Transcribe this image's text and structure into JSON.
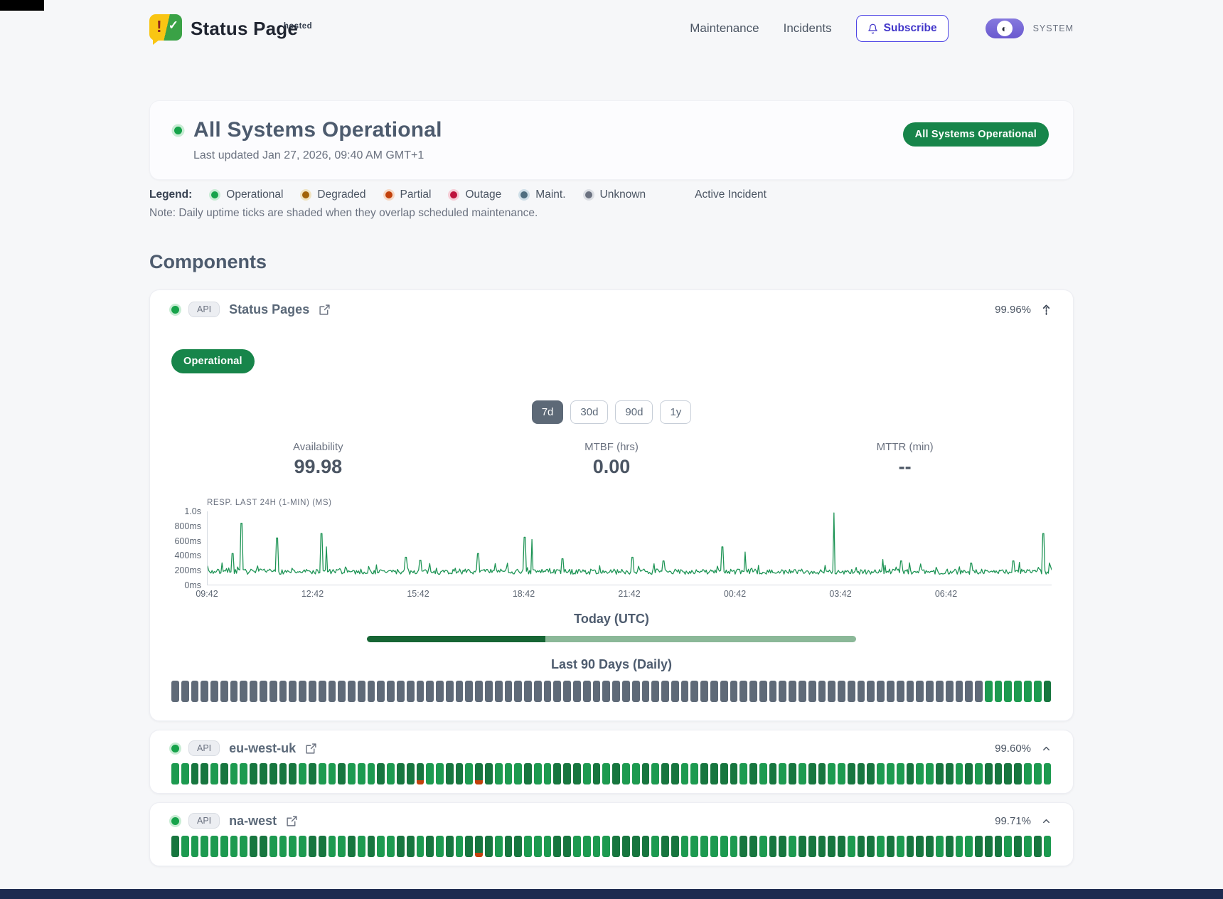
{
  "header": {
    "brand": {
      "name": "Status Page",
      "superscript": "hosted"
    },
    "nav": [
      "Maintenance",
      "Incidents"
    ],
    "subscribe_label": "Subscribe",
    "theme_label": "SYSTEM"
  },
  "hero": {
    "title": "All Systems Operational",
    "last_updated": "Last updated Jan 27, 2026, 09:40 AM GMT+1",
    "badge": "All Systems Operational"
  },
  "legend": {
    "label": "Legend:",
    "items": [
      {
        "label": "Operational",
        "color": "#16a34a",
        "halo": "#c8ecd4"
      },
      {
        "label": "Degraded",
        "color": "#a16207",
        "halo": "#f0e3c0"
      },
      {
        "label": "Partial",
        "color": "#c2410c",
        "halo": "#f6d8c4"
      },
      {
        "label": "Outage",
        "color": "#be123c",
        "halo": "#f6cdd6"
      },
      {
        "label": "Maint.",
        "color": "#4e6e80",
        "halo": "#cfdfe8"
      },
      {
        "label": "Unknown",
        "color": "#6b7280",
        "halo": "#dcdfe4"
      }
    ],
    "active_incident_label": "Active Incident",
    "note": "Note: Daily uptime ticks are shaded when they overlap scheduled maintenance."
  },
  "components": {
    "heading": "Components",
    "expanded": {
      "tag": "API",
      "name": "Status Pages",
      "uptime": "99.96%",
      "status_badge": "Operational",
      "ranges": [
        "7d",
        "30d",
        "90d",
        "1y"
      ],
      "active_range": "7d",
      "metrics": [
        {
          "label": "Availability",
          "value": "99.98"
        },
        {
          "label": "MTBF (hrs)",
          "value": "0.00"
        },
        {
          "label": "MTTR (min)",
          "value": "--"
        }
      ],
      "today": {
        "label": "Today (UTC)",
        "progress": 0.365
      },
      "daily": {
        "label": "Last 90 Days (Daily)",
        "ticks": {
          "total": 90,
          "default": "unknown",
          "operational_tail": 7
        }
      }
    },
    "collapsed": [
      {
        "tag": "API",
        "name": "eu-west-uk",
        "uptime": "99.60%",
        "ticks": {
          "total": 90,
          "default": "operational",
          "partial": [
            25,
            31
          ]
        }
      },
      {
        "tag": "API",
        "name": "na-west",
        "uptime": "99.71%",
        "ticks": {
          "total": 90,
          "default": "operational",
          "partial": [
            31
          ]
        }
      }
    ]
  },
  "chart_data": {
    "type": "line",
    "title": "RESP. LAST 24H (1-MIN) (MS)",
    "x_ticks": [
      "09:42",
      "12:42",
      "15:42",
      "18:42",
      "21:42",
      "00:42",
      "03:42",
      "06:42"
    ],
    "y_ticks": [
      "1.0s",
      "800ms",
      "600ms",
      "400ms",
      "200ms",
      "0ms"
    ],
    "ylim": [
      0,
      1000
    ],
    "baseline_ms": 180,
    "spikes": [
      {
        "x": 0.03,
        "ms": 430
      },
      {
        "x": 0.04,
        "ms": 840
      },
      {
        "x": 0.082,
        "ms": 640
      },
      {
        "x": 0.135,
        "ms": 700
      },
      {
        "x": 0.141,
        "ms": 520
      },
      {
        "x": 0.235,
        "ms": 380
      },
      {
        "x": 0.252,
        "ms": 340
      },
      {
        "x": 0.32,
        "ms": 430
      },
      {
        "x": 0.376,
        "ms": 650
      },
      {
        "x": 0.384,
        "ms": 620
      },
      {
        "x": 0.42,
        "ms": 360
      },
      {
        "x": 0.503,
        "ms": 380
      },
      {
        "x": 0.54,
        "ms": 330
      },
      {
        "x": 0.61,
        "ms": 520
      },
      {
        "x": 0.637,
        "ms": 450
      },
      {
        "x": 0.742,
        "ms": 980
      },
      {
        "x": 0.8,
        "ms": 350
      },
      {
        "x": 0.822,
        "ms": 330
      },
      {
        "x": 0.905,
        "ms": 300
      },
      {
        "x": 0.955,
        "ms": 330
      },
      {
        "x": 0.99,
        "ms": 700
      }
    ],
    "legend_position": "none",
    "grid": false
  },
  "colors": {
    "dot_green": "#16a34a",
    "dot_green_halo": "#c8ecd4",
    "badge_green": "#17854a",
    "tick_gray": "#5f6a78",
    "tick_green_a": "#17763f",
    "tick_green_b": "#1d9a50",
    "partial_red": "#c2410c",
    "line_green": "#1e9455",
    "progress_dark": "#166534",
    "progress_light": "#8bb898"
  }
}
